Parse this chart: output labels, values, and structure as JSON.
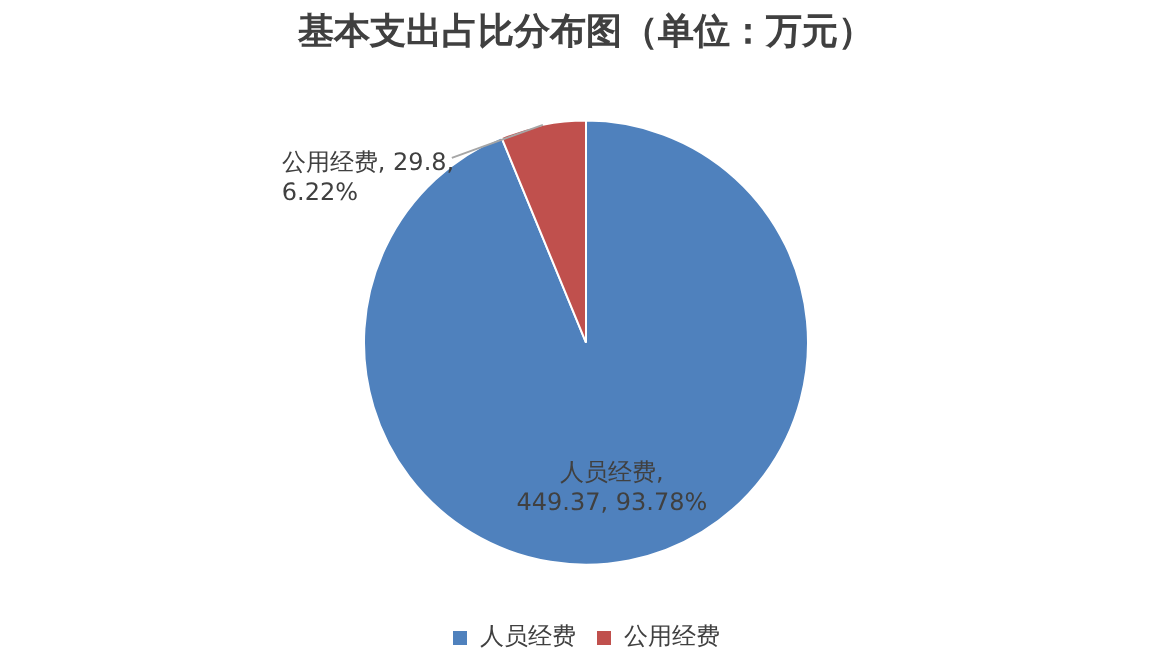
{
  "chart_data": {
    "type": "pie",
    "title": "基本支出占比分布图（单位：万元）",
    "categories": [
      "人员经费",
      "公用经费"
    ],
    "values": [
      449.37,
      29.8
    ],
    "colors": [
      "#4f81bd",
      "#c0504d"
    ],
    "value_labels": [
      "人员经费, 449.37, 93.78%",
      "公用经费, 29.8, 6.22%"
    ],
    "legend": "bottom"
  }
}
